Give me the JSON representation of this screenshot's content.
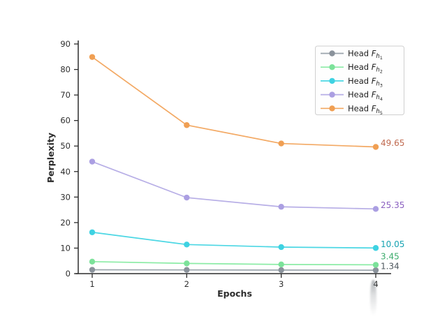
{
  "chart_data": {
    "type": "line",
    "title": "",
    "xlabel": "Epochs",
    "ylabel": "Perplexity",
    "x": [
      1,
      2,
      3,
      4
    ],
    "xticks": [
      "1",
      "2",
      "3",
      "4"
    ],
    "yticks": [
      "0",
      "10",
      "20",
      "30",
      "40",
      "50",
      "60",
      "70",
      "80",
      "90"
    ],
    "xlim": [
      0.85,
      4.17
    ],
    "ylim": [
      0,
      90
    ],
    "grid": false,
    "legend": {
      "position": "upper right",
      "prefix": "Head ",
      "symbol": "F",
      "sub": "h"
    },
    "series": [
      {
        "name": "Head F_h1",
        "index": "1",
        "values": [
          1.5,
          1.45,
          1.4,
          1.34
        ],
        "final_label": "1.34",
        "line_color": "#9ba4ac",
        "marker_color": "#8a929b",
        "label_color": "#4f585f"
      },
      {
        "name": "Head F_h2",
        "index": "2",
        "values": [
          4.7,
          4.0,
          3.6,
          3.45
        ],
        "final_label": "3.45",
        "line_color": "#8ceca6",
        "marker_color": "#7ce29a",
        "label_color": "#3cab6b"
      },
      {
        "name": "Head F_h3",
        "index": "3",
        "values": [
          16.2,
          11.4,
          10.4,
          10.05
        ],
        "final_label": "10.05",
        "line_color": "#4cd7e4",
        "marker_color": "#3ed2e2",
        "label_color": "#17a3b2"
      },
      {
        "name": "Head F_h4",
        "index": "4",
        "values": [
          43.9,
          29.8,
          26.2,
          25.35
        ],
        "final_label": "25.35",
        "line_color": "#b7aee6",
        "marker_color": "#ab9fe2",
        "label_color": "#8a5fc0"
      },
      {
        "name": "Head F_h5",
        "index": "5",
        "values": [
          84.9,
          58.2,
          51.0,
          49.65
        ],
        "final_label": "49.65",
        "line_color": "#f3a964",
        "marker_color": "#f09f53",
        "label_color": "#c06a50"
      }
    ],
    "axis_color": "#2d2d2d",
    "tick_label_color": "#2d2d2d",
    "legend_text_color": "#1d1d1d",
    "legend_border_color": "#cfcfcf",
    "legend_bg_color": "#fefefe"
  }
}
